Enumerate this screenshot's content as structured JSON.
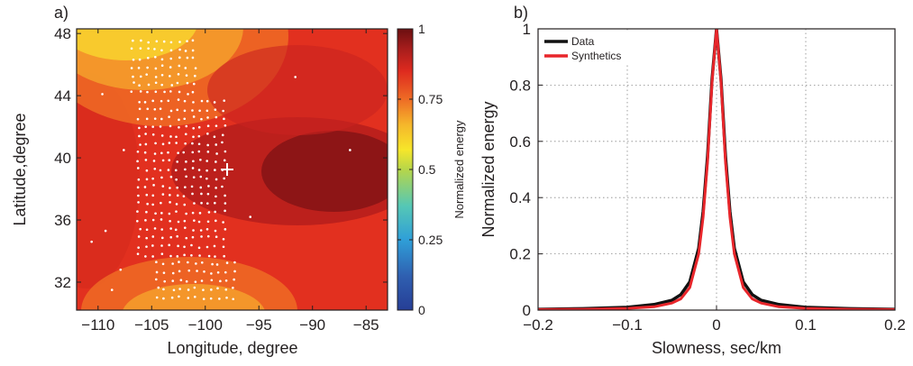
{
  "panel_a": "a)",
  "panel_b": "b)",
  "chart_data": [
    {
      "type": "heatmap",
      "title": "",
      "xlabel": "Longitude, degree",
      "ylabel": "Latitude,degree",
      "xlim": [
        -112,
        -83
      ],
      "ylim": [
        30.2,
        48.3
      ],
      "xticks": [
        -110,
        -105,
        -100,
        -95,
        -90,
        -85
      ],
      "yticks": [
        32,
        36,
        40,
        44,
        48
      ],
      "colorbar": {
        "label": "Normalized energy",
        "ticks": [
          0,
          0.25,
          0.5,
          0.75,
          1
        ],
        "range": [
          0,
          1
        ],
        "colors": [
          "#263e96",
          "#2f7fc4",
          "#3fbfd6",
          "#8fcf5a",
          "#f6e62a",
          "#f5b62b",
          "#ee6b25",
          "#de2a1f",
          "#a61d1c",
          "#6b0f10"
        ]
      },
      "peak": {
        "lon": -97.3,
        "lat": 39.2,
        "marker": "cross",
        "color": "#ffffff"
      },
      "stations_color": "#ffffff"
    },
    {
      "type": "line",
      "title": "",
      "xlabel": "Slowness, sec/km",
      "ylabel": "Normalized energy",
      "xlim": [
        -0.2,
        0.2
      ],
      "ylim": [
        0,
        1
      ],
      "xticks": [
        -0.2,
        -0.1,
        0,
        0.1,
        0.2
      ],
      "yticks": [
        0,
        0.2,
        0.4,
        0.6,
        0.8,
        1
      ],
      "grid": true,
      "legend_position": "top-left",
      "series": [
        {
          "name": "Data",
          "color": "#111111",
          "x": [
            -0.2,
            -0.15,
            -0.1,
            -0.07,
            -0.05,
            -0.04,
            -0.03,
            -0.02,
            -0.015,
            -0.01,
            -0.005,
            0,
            0.005,
            0.01,
            0.015,
            0.02,
            0.03,
            0.04,
            0.05,
            0.07,
            0.1,
            0.15,
            0.2
          ],
          "y": [
            0.003,
            0.005,
            0.01,
            0.02,
            0.035,
            0.055,
            0.1,
            0.22,
            0.35,
            0.55,
            0.82,
            1.0,
            0.82,
            0.55,
            0.35,
            0.22,
            0.1,
            0.055,
            0.035,
            0.02,
            0.01,
            0.005,
            0.003
          ]
        },
        {
          "name": "Synthetics",
          "color": "#e8262b",
          "x": [
            -0.2,
            -0.15,
            -0.1,
            -0.07,
            -0.05,
            -0.04,
            -0.03,
            -0.02,
            -0.015,
            -0.01,
            -0.005,
            0,
            0.005,
            0.01,
            0.015,
            0.02,
            0.03,
            0.04,
            0.05,
            0.07,
            0.1,
            0.15,
            0.2
          ],
          "y": [
            0.002,
            0.003,
            0.006,
            0.012,
            0.025,
            0.04,
            0.08,
            0.2,
            0.33,
            0.53,
            0.81,
            1.0,
            0.81,
            0.53,
            0.33,
            0.2,
            0.08,
            0.04,
            0.025,
            0.012,
            0.006,
            0.003,
            0.002
          ]
        }
      ]
    }
  ]
}
